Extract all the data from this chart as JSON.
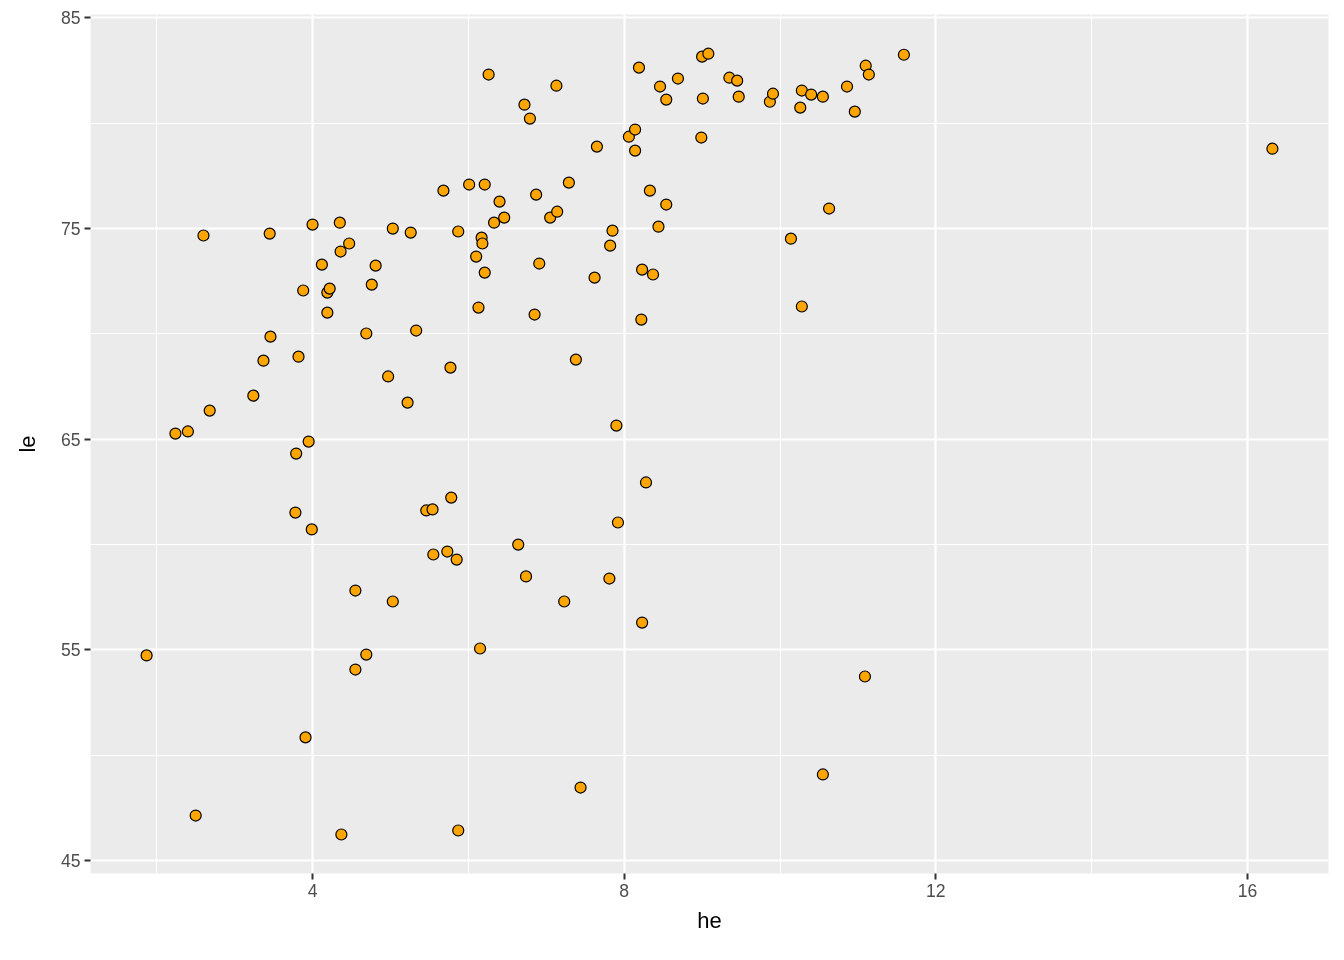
{
  "chart_data": {
    "type": "scatter",
    "xlabel": "he",
    "ylabel": "le",
    "color": "#ffa500",
    "marker": "circle",
    "grid": true,
    "xlim": [
      1.15,
      17.04
    ],
    "ylim": [
      44.38,
      85.15
    ],
    "xticks": [
      4,
      8,
      12,
      16
    ],
    "yticks": [
      45,
      55,
      65,
      75,
      85
    ],
    "x": [
      1.87,
      2.5,
      2.24,
      2.4,
      2.68,
      2.6,
      3.24,
      3.37,
      3.46,
      3.45,
      3.82,
      3.88,
      3.79,
      3.95,
      3.78,
      3.99,
      3.91,
      4.0,
      4.12,
      4.19,
      4.22,
      4.19,
      4.35,
      4.36,
      4.47,
      4.37,
      4.55,
      4.55,
      4.69,
      4.69,
      4.76,
      4.81,
      4.97,
      5.03,
      5.03,
      5.22,
      5.26,
      5.33,
      5.46,
      5.54,
      5.55,
      5.68,
      5.73,
      5.77,
      5.78,
      5.85,
      5.87,
      5.87,
      6.01,
      6.1,
      6.13,
      6.15,
      6.17,
      6.18,
      6.21,
      6.21,
      6.26,
      6.33,
      6.4,
      6.46,
      6.64,
      6.72,
      6.74,
      6.79,
      6.85,
      6.87,
      6.91,
      7.05,
      7.13,
      7.14,
      7.23,
      7.29,
      7.38,
      7.44,
      7.62,
      7.65,
      7.81,
      7.82,
      7.85,
      7.9,
      7.92,
      8.06,
      8.14,
      8.14,
      8.19,
      8.22,
      8.23,
      8.23,
      8.28,
      8.33,
      8.37,
      8.44,
      8.46,
      8.54,
      8.54,
      8.69,
      8.99,
      9.0,
      9.08,
      9.01,
      9.35,
      9.45,
      9.47,
      9.87,
      9.91,
      10.14,
      10.26,
      10.28,
      10.28,
      10.4,
      10.55,
      10.55,
      10.63,
      10.86,
      10.96,
      11.09,
      11.1,
      11.14,
      11.59,
      16.32
    ],
    "values": [
      54.73,
      47.13,
      65.26,
      65.36,
      66.35,
      74.66,
      67.06,
      68.72,
      69.86,
      74.75,
      68.91,
      72.05,
      64.31,
      64.88,
      61.51,
      60.71,
      50.84,
      75.18,
      73.28,
      71.95,
      72.14,
      71.0,
      75.27,
      73.9,
      74.28,
      46.23,
      57.81,
      54.06,
      54.77,
      70.01,
      72.33,
      73.23,
      67.97,
      74.99,
      57.29,
      66.73,
      74.8,
      70.15,
      61.61,
      61.66,
      59.52,
      76.79,
      59.66,
      68.39,
      62.22,
      59.28,
      46.42,
      74.85,
      77.08,
      73.66,
      71.24,
      55.06,
      74.56,
      74.28,
      72.9,
      77.08,
      82.3,
      75.27,
      76.27,
      75.51,
      59.99,
      80.87,
      58.48,
      80.21,
      70.91,
      76.6,
      73.33,
      75.51,
      81.77,
      75.79,
      57.29,
      77.17,
      68.77,
      48.46,
      72.66,
      78.88,
      58.38,
      74.18,
      74.89,
      65.64,
      61.04,
      79.35,
      79.69,
      78.69,
      82.63,
      70.67,
      73.04,
      56.29,
      62.94,
      76.79,
      72.81,
      75.08,
      81.73,
      81.11,
      76.13,
      82.11,
      79.31,
      83.15,
      83.29,
      81.16,
      82.15,
      82.01,
      81.25,
      81.01,
      81.39,
      74.51,
      80.73,
      81.54,
      71.29,
      81.35,
      81.25,
      49.08,
      75.94,
      81.73,
      80.54,
      53.73,
      82.72,
      82.3,
      83.24,
      78.78
    ]
  }
}
